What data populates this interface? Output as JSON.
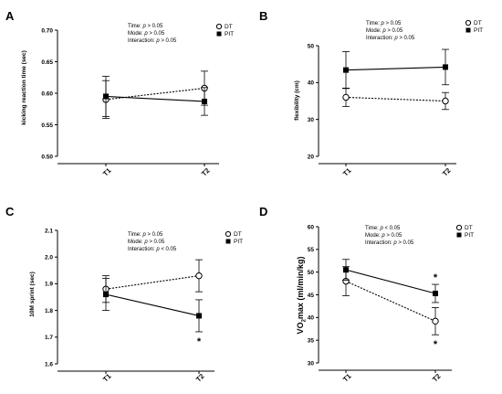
{
  "chart_data": [
    {
      "type": "line",
      "panel_label": "A",
      "ylabel": "kicking reaction time (sec)",
      "x": [
        "T1",
        "T2"
      ],
      "ylim": [
        0.5,
        0.7
      ],
      "yticks": [
        "0.50",
        "0.55",
        "0.60",
        "0.65",
        "0.70"
      ],
      "stats": [
        {
          "pre": "Time: ",
          "p": "p",
          "post": " > 0.05"
        },
        {
          "pre": "Mode: ",
          "p": "p",
          "post": " > 0.05"
        },
        {
          "pre": "Interaction: ",
          "p": "p",
          "post": " > 0.05"
        }
      ],
      "series": [
        {
          "name": "DT",
          "marker": "open-circle",
          "dash": true,
          "values": [
            0.59,
            0.608
          ],
          "err": [
            0.03,
            0.027
          ],
          "stars": [
            "",
            ""
          ]
        },
        {
          "name": "PIT",
          "marker": "filled-square",
          "dash": false,
          "values": [
            0.595,
            0.587
          ],
          "err": [
            0.032,
            0.022
          ],
          "stars": [
            "",
            ""
          ]
        }
      ]
    },
    {
      "type": "line",
      "panel_label": "B",
      "ylabel": "flexibility (cm)",
      "x": [
        "T1",
        "T2"
      ],
      "ylim": [
        20,
        50
      ],
      "yticks": [
        "20",
        "30",
        "40",
        "50"
      ],
      "stats": [
        {
          "pre": "Time: ",
          "p": "p",
          "post": " > 0.05"
        },
        {
          "pre": "Mode: ",
          "p": "p",
          "post": " > 0.05"
        },
        {
          "pre": "Interaction: ",
          "p": "p",
          "post": " > 0.05"
        }
      ],
      "series": [
        {
          "name": "DT",
          "marker": "open-circle",
          "dash": true,
          "values": [
            36.0,
            35.0
          ],
          "err": [
            2.5,
            2.3
          ],
          "stars": [
            "",
            ""
          ]
        },
        {
          "name": "PIT",
          "marker": "filled-square",
          "dash": false,
          "values": [
            43.4,
            44.2
          ],
          "err": [
            5.0,
            4.8
          ],
          "stars": [
            "",
            ""
          ]
        }
      ]
    },
    {
      "type": "line",
      "panel_label": "C",
      "ylabel": "10M sprint (sec)",
      "x": [
        "T1",
        "T2"
      ],
      "ylim": [
        1.6,
        2.1
      ],
      "yticks": [
        "1.6",
        "1.7",
        "1.8",
        "1.9",
        "2.0",
        "2.1"
      ],
      "stats": [
        {
          "pre": "Time: ",
          "p": "p",
          "post": " > 0.05"
        },
        {
          "pre": "Mode: ",
          "p": "p",
          "post": " > 0.05"
        },
        {
          "pre": "Interaction: ",
          "p": "p",
          "post": " < 0.05"
        }
      ],
      "series": [
        {
          "name": "DT",
          "marker": "open-circle",
          "dash": true,
          "values": [
            1.88,
            1.93
          ],
          "err": [
            0.05,
            0.06
          ],
          "stars": [
            "",
            ""
          ]
        },
        {
          "name": "PIT",
          "marker": "filled-square",
          "dash": false,
          "values": [
            1.86,
            1.78
          ],
          "err": [
            0.06,
            0.06
          ],
          "stars": [
            "",
            "*"
          ]
        }
      ]
    },
    {
      "type": "line",
      "panel_label": "D",
      "ylabel_main": "VO",
      "ylabel_sub": "2",
      "ylabel_rest": "max (ml/min/kg)",
      "x": [
        "T1",
        "T2"
      ],
      "ylim": [
        30,
        60
      ],
      "yticks": [
        "30",
        "35",
        "40",
        "45",
        "50",
        "55",
        "60"
      ],
      "stats": [
        {
          "pre": "Time: ",
          "p": "p",
          "post": " < 0.05"
        },
        {
          "pre": "Mode: ",
          "p": "p",
          "post": " > 0.05"
        },
        {
          "pre": "Interaction: ",
          "p": "p",
          "post": " > 0.05"
        }
      ],
      "series": [
        {
          "name": "DT",
          "marker": "open-circle",
          "dash": true,
          "values": [
            48.0,
            39.2
          ],
          "err": [
            3.2,
            3.0
          ],
          "stars": [
            "",
            "*"
          ]
        },
        {
          "name": "PIT",
          "marker": "filled-square",
          "dash": false,
          "values": [
            50.5,
            45.3
          ],
          "err": [
            2.3,
            2.0
          ],
          "stars": [
            "",
            "*"
          ]
        }
      ]
    }
  ]
}
